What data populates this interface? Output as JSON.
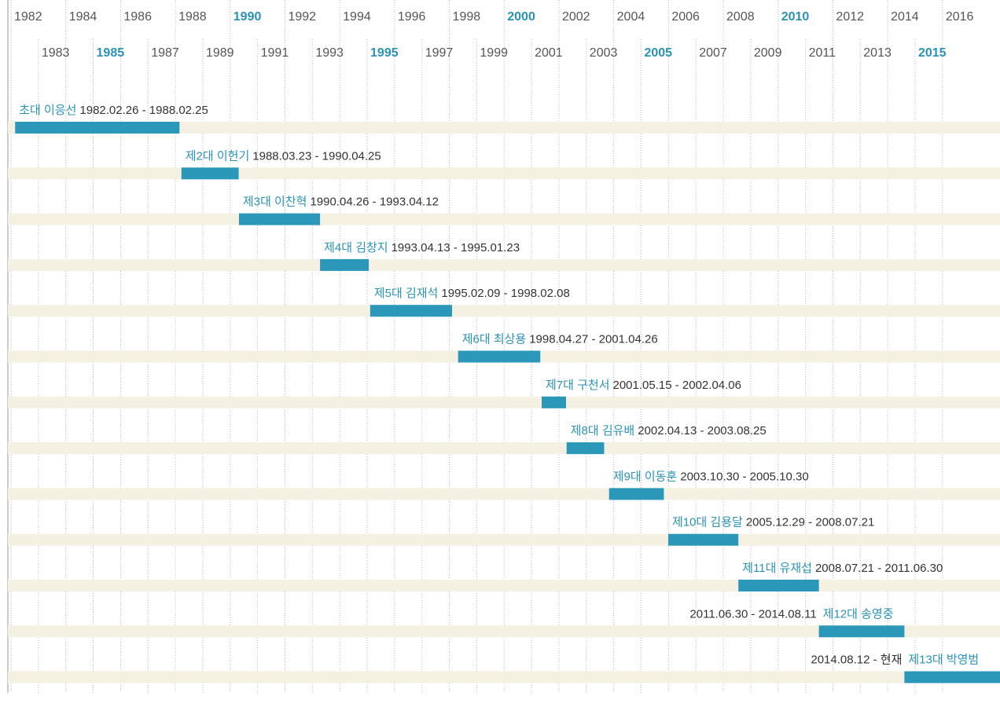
{
  "chart_data": {
    "type": "timeline",
    "xlim": [
      1982,
      2018.1
    ],
    "xticks": [
      1982,
      1983,
      1984,
      1985,
      1986,
      1987,
      1988,
      1989,
      1990,
      1991,
      1992,
      1993,
      1994,
      1995,
      1996,
      1997,
      1998,
      1999,
      2000,
      2001,
      2002,
      2003,
      2004,
      2005,
      2006,
      2007,
      2008,
      2009,
      2010,
      2011,
      2012,
      2013,
      2014,
      2015,
      2016
    ],
    "color": "#2b98ba",
    "track_color": "#f4f0e2",
    "rows": [
      {
        "name": "초대 이응선",
        "period": "1982.02.26 - 1988.02.25",
        "start": 1982.15,
        "end": 1988.15
      },
      {
        "name": "제2대 이헌기",
        "period": "1988.03.23 - 1990.04.25",
        "start": 1988.22,
        "end": 1990.31
      },
      {
        "name": "제3대 이찬혁",
        "period": "1990.04.26 - 1993.04.12",
        "start": 1990.32,
        "end": 1993.28
      },
      {
        "name": "제4대 김창지",
        "period": "1993.04.13 - 1995.01.23",
        "start": 1993.28,
        "end": 1995.06
      },
      {
        "name": "제5대 김재석",
        "period": "1995.02.09 - 1998.02.08",
        "start": 1995.11,
        "end": 1998.1
      },
      {
        "name": "제6대 최상용",
        "period": "1998.04.27 - 2001.04.26",
        "start": 1998.32,
        "end": 2001.32
      },
      {
        "name": "제7대 구천서",
        "period": "2001.05.15 - 2002.04.06",
        "start": 2001.37,
        "end": 2002.26
      },
      {
        "name": "제8대 김유배",
        "period": "2002.04.13 - 2003.08.25",
        "start": 2002.28,
        "end": 2003.65
      },
      {
        "name": "제9대 이동훈",
        "period": "2003.10.30 - 2005.10.30",
        "start": 2003.83,
        "end": 2005.83
      },
      {
        "name": "제10대 김용달",
        "period": "2005.12.29 - 2008.07.21",
        "start": 2005.99,
        "end": 2008.55
      },
      {
        "name": "제11대 유재섭",
        "period": "2008.07.21 - 2011.06.30",
        "start": 2008.55,
        "end": 2011.49
      },
      {
        "name": "제12대 송영중",
        "period": "2011.06.30 - 2014.08.11",
        "start": 2011.49,
        "end": 2014.61
      },
      {
        "name": "제13대 박영범",
        "period": "2014.08.12 - 현재",
        "start": 2014.61,
        "end": 2018.1
      }
    ]
  }
}
